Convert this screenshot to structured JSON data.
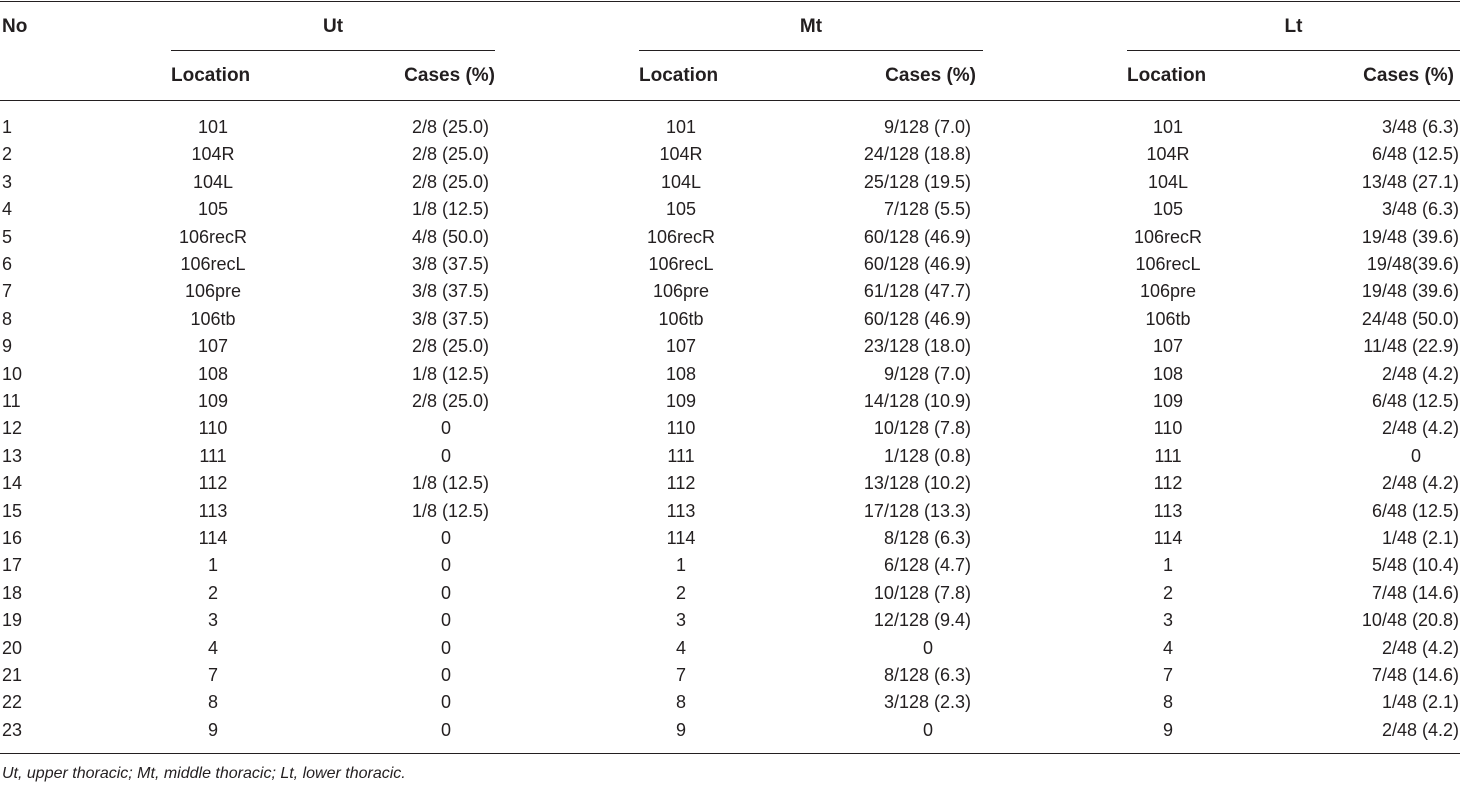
{
  "header": {
    "no": "No",
    "groups": [
      "Ut",
      "Mt",
      "Lt"
    ],
    "location": "Location",
    "cases": "Cases (%)"
  },
  "rows": [
    {
      "no": "1",
      "cells": [
        [
          "101",
          "2/8 (25.0)"
        ],
        [
          "101",
          "9/128 (7.0)"
        ],
        [
          "101",
          "3/48 (6.3)"
        ]
      ]
    },
    {
      "no": "2",
      "cells": [
        [
          "104R",
          "2/8 (25.0)"
        ],
        [
          "104R",
          "24/128 (18.8)"
        ],
        [
          "104R",
          "6/48 (12.5)"
        ]
      ]
    },
    {
      "no": "3",
      "cells": [
        [
          "104L",
          "2/8 (25.0)"
        ],
        [
          "104L",
          "25/128 (19.5)"
        ],
        [
          "104L",
          "13/48 (27.1)"
        ]
      ]
    },
    {
      "no": "4",
      "cells": [
        [
          "105",
          "1/8 (12.5)"
        ],
        [
          "105",
          "7/128 (5.5)"
        ],
        [
          "105",
          "3/48 (6.3)"
        ]
      ]
    },
    {
      "no": "5",
      "cells": [
        [
          "106recR",
          "4/8 (50.0)"
        ],
        [
          "106recR",
          "60/128 (46.9)"
        ],
        [
          "106recR",
          "19/48 (39.6)"
        ]
      ]
    },
    {
      "no": "6",
      "cells": [
        [
          "106recL",
          "3/8 (37.5)"
        ],
        [
          "106recL",
          "60/128 (46.9)"
        ],
        [
          "106recL",
          "19/48(39.6)"
        ]
      ]
    },
    {
      "no": "7",
      "cells": [
        [
          "106pre",
          "3/8 (37.5)"
        ],
        [
          "106pre",
          "61/128 (47.7)"
        ],
        [
          "106pre",
          "19/48 (39.6)"
        ]
      ]
    },
    {
      "no": "8",
      "cells": [
        [
          "106tb",
          "3/8 (37.5)"
        ],
        [
          "106tb",
          "60/128 (46.9)"
        ],
        [
          "106tb",
          "24/48 (50.0)"
        ]
      ]
    },
    {
      "no": "9",
      "cells": [
        [
          "107",
          "2/8 (25.0)"
        ],
        [
          "107",
          "23/128 (18.0)"
        ],
        [
          "107",
          "11/48 (22.9)"
        ]
      ]
    },
    {
      "no": "10",
      "cells": [
        [
          "108",
          "1/8 (12.5)"
        ],
        [
          "108",
          "9/128 (7.0)"
        ],
        [
          "108",
          "2/48 (4.2)"
        ]
      ]
    },
    {
      "no": "11",
      "cells": [
        [
          "109",
          "2/8 (25.0)"
        ],
        [
          "109",
          "14/128 (10.9)"
        ],
        [
          "109",
          "6/48 (12.5)"
        ]
      ]
    },
    {
      "no": "12",
      "cells": [
        [
          "110",
          "0"
        ],
        [
          "110",
          "10/128 (7.8)"
        ],
        [
          "110",
          "2/48 (4.2)"
        ]
      ]
    },
    {
      "no": "13",
      "cells": [
        [
          "111",
          "0"
        ],
        [
          "111",
          "1/128 (0.8)"
        ],
        [
          "111",
          "0"
        ]
      ]
    },
    {
      "no": "14",
      "cells": [
        [
          "112",
          "1/8 (12.5)"
        ],
        [
          "112",
          "13/128 (10.2)"
        ],
        [
          "112",
          "2/48 (4.2)"
        ]
      ]
    },
    {
      "no": "15",
      "cells": [
        [
          "113",
          "1/8 (12.5)"
        ],
        [
          "113",
          "17/128 (13.3)"
        ],
        [
          "113",
          "6/48 (12.5)"
        ]
      ]
    },
    {
      "no": "16",
      "cells": [
        [
          "114",
          "0"
        ],
        [
          "114",
          "8/128 (6.3)"
        ],
        [
          "114",
          "1/48 (2.1)"
        ]
      ]
    },
    {
      "no": "17",
      "cells": [
        [
          "1",
          "0"
        ],
        [
          "1",
          "6/128 (4.7)"
        ],
        [
          "1",
          "5/48 (10.4)"
        ]
      ]
    },
    {
      "no": "18",
      "cells": [
        [
          "2",
          "0"
        ],
        [
          "2",
          "10/128 (7.8)"
        ],
        [
          "2",
          "7/48 (14.6)"
        ]
      ]
    },
    {
      "no": "19",
      "cells": [
        [
          "3",
          "0"
        ],
        [
          "3",
          "12/128 (9.4)"
        ],
        [
          "3",
          "10/48 (20.8)"
        ]
      ]
    },
    {
      "no": "20",
      "cells": [
        [
          "4",
          "0"
        ],
        [
          "4",
          "0"
        ],
        [
          "4",
          "2/48 (4.2)"
        ]
      ]
    },
    {
      "no": "21",
      "cells": [
        [
          "7",
          "0"
        ],
        [
          "7",
          "8/128 (6.3)"
        ],
        [
          "7",
          "7/48 (14.6)"
        ]
      ]
    },
    {
      "no": "22",
      "cells": [
        [
          "8",
          "0"
        ],
        [
          "8",
          "3/128 (2.3)"
        ],
        [
          "8",
          "1/48 (2.1)"
        ]
      ]
    },
    {
      "no": "23",
      "cells": [
        [
          "9",
          "0"
        ],
        [
          "9",
          "0"
        ],
        [
          "9",
          "2/48 (4.2)"
        ]
      ]
    }
  ],
  "footnote": "Ut, upper thoracic; Mt, middle thoracic; Lt, lower thoracic."
}
